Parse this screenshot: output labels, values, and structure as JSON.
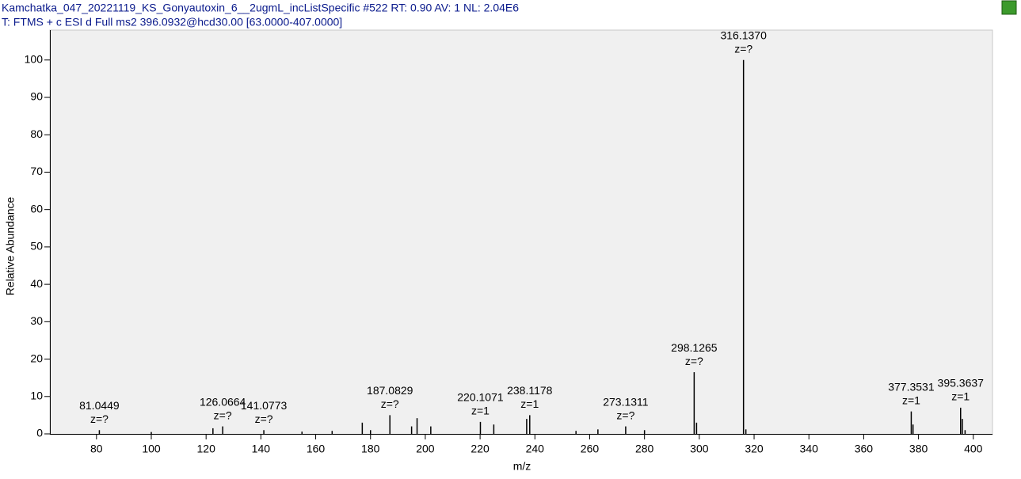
{
  "chart_data": {
    "type": "stem",
    "title": "Kamchatka_047_20221119_KS_Gonyautoxin_6__2ugmL_incListSpecific #522   RT: 0.90   AV: 1   NL: 2.04E6",
    "subtitle": "T: FTMS + c ESI d Full ms2 396.0932@hcd30.00 [63.0000-407.0000]",
    "x_label": "m/z",
    "y_label": "Relative Abundance",
    "x": [
      81.0449,
      100,
      122.5,
      126.0664,
      141.0773,
      155,
      166,
      177,
      180,
      187.0829,
      195,
      197,
      202,
      220.1071,
      225,
      237,
      238.1178,
      255,
      263,
      273.1311,
      280,
      298.1265,
      299,
      316.137,
      317,
      377.3531,
      378,
      395.3637,
      396,
      397
    ],
    "values": [
      1,
      0.5,
      1.5,
      2,
      1,
      0.6,
      0.8,
      3,
      1,
      5,
      2,
      4.2,
      2,
      3.2,
      2.5,
      4,
      5,
      0.8,
      1.2,
      2,
      1,
      16.5,
      3,
      100,
      1.2,
      6,
      2.5,
      7,
      4,
      1
    ],
    "peak_labels": [
      "81.0449",
      null,
      null,
      "126.0664",
      "141.0773",
      null,
      null,
      null,
      null,
      "187.0829",
      null,
      null,
      null,
      "220.1071",
      null,
      null,
      "238.1178",
      null,
      null,
      "273.1311",
      null,
      "298.1265",
      null,
      "316.1370",
      null,
      "377.3531",
      null,
      "395.3637",
      null,
      null
    ],
    "charge_labels": [
      "z=?",
      null,
      null,
      "z=?",
      "z=?",
      null,
      null,
      null,
      null,
      "z=?",
      null,
      null,
      null,
      "z=1",
      null,
      null,
      "z=1",
      null,
      null,
      "z=?",
      null,
      "z=?",
      null,
      "z=?",
      null,
      "z=1",
      null,
      "z=1",
      null,
      null
    ],
    "color": "#000000",
    "xlim": [
      63,
      407
    ],
    "xticks": [
      80,
      100,
      120,
      140,
      160,
      180,
      200,
      220,
      240,
      260,
      280,
      300,
      320,
      340,
      360,
      380,
      400
    ],
    "ylim": [
      0,
      108
    ],
    "yticks": [
      0,
      10,
      20,
      30,
      40,
      50,
      60,
      70,
      80,
      90,
      100
    ]
  }
}
